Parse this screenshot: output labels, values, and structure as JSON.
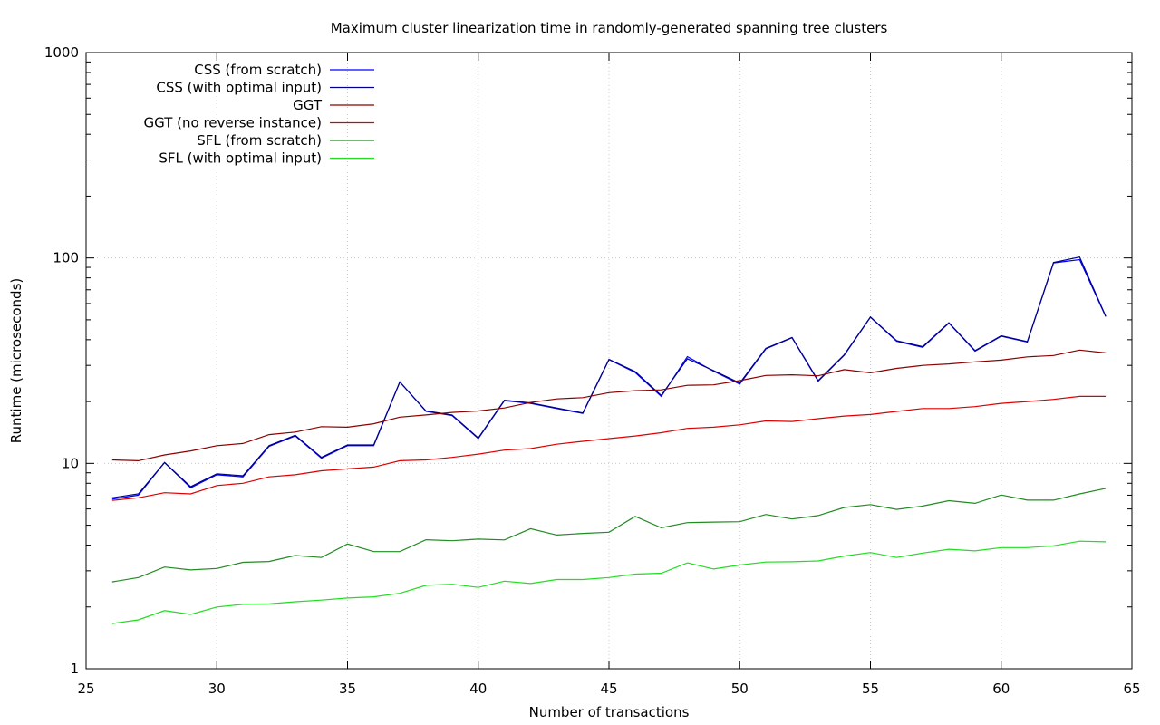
{
  "chart_data": {
    "type": "line",
    "title": "Maximum cluster linearization time in randomly-generated spanning tree clusters",
    "xlabel": "Number of transactions",
    "ylabel": "Runtime (microseconds)",
    "xlim": [
      25,
      65
    ],
    "ylim": [
      1,
      1000
    ],
    "yscale": "log",
    "grid": true,
    "legend_position": "top-left",
    "x_ticks": [
      25,
      30,
      35,
      40,
      45,
      50,
      55,
      60,
      65
    ],
    "x_tick_labels": [
      "25",
      "30",
      "35",
      "40",
      "45",
      "50",
      "55",
      "60",
      "65"
    ],
    "y_ticks": [
      1,
      10,
      100,
      1000
    ],
    "y_tick_labels": [
      "1",
      "10",
      "100",
      "1000"
    ],
    "x": [
      26,
      27,
      28,
      29,
      30,
      31,
      32,
      33,
      34,
      35,
      36,
      37,
      38,
      39,
      40,
      41,
      42,
      43,
      44,
      45,
      46,
      47,
      48,
      49,
      50,
      51,
      52,
      53,
      54,
      55,
      56,
      57,
      58,
      59,
      60,
      61,
      62,
      63,
      64
    ],
    "series": [
      {
        "name": "CSS (from scratch)",
        "color": "#0000ff",
        "values": [
          6.7,
          7.0,
          10.1,
          7.6,
          8.8,
          8.6,
          12.1,
          13.6,
          10.6,
          12.2,
          12.2,
          24.9,
          17.9,
          17.1,
          13.2,
          20.2,
          19.6,
          18.5,
          17.5,
          32.0,
          27.7,
          21.2,
          33.1,
          28.1,
          24.3,
          36.1,
          40.9,
          25.1,
          33.6,
          51.5,
          39.3,
          36.7,
          48.2,
          35.2,
          41.6,
          39.0,
          94.6,
          98.2,
          51.8
        ]
      },
      {
        "name": "CSS (with optimal input)",
        "color": "#00008b",
        "values": [
          6.8,
          7.1,
          10.1,
          7.7,
          8.9,
          8.7,
          12.2,
          13.7,
          10.7,
          12.3,
          12.3,
          24.9,
          18.0,
          17.2,
          13.3,
          20.3,
          19.7,
          18.6,
          17.6,
          32.1,
          28.0,
          21.4,
          32.3,
          28.3,
          24.6,
          36.3,
          41.0,
          25.3,
          33.8,
          51.6,
          39.6,
          37.0,
          48.4,
          35.4,
          41.8,
          39.2,
          95.0,
          101.0,
          52.0
        ]
      },
      {
        "name": "GGT",
        "color": "#8b0000",
        "values": [
          10.4,
          10.3,
          11.0,
          11.5,
          12.2,
          12.5,
          13.8,
          14.2,
          15.1,
          15.0,
          15.6,
          16.8,
          17.2,
          17.7,
          18.0,
          18.6,
          19.8,
          20.6,
          20.9,
          22.1,
          22.6,
          22.8,
          24.0,
          24.1,
          25.3,
          26.8,
          27.0,
          26.7,
          28.6,
          27.6,
          29.0,
          30.0,
          30.5,
          31.2,
          31.8,
          33.0,
          33.5,
          35.6,
          34.5
        ]
      },
      {
        "name": "GGT (no reverse instance)",
        "color": "#dd0000",
        "values": [
          6.6,
          6.8,
          7.2,
          7.1,
          7.8,
          8.0,
          8.6,
          8.8,
          9.2,
          9.4,
          9.6,
          10.3,
          10.4,
          10.7,
          11.1,
          11.6,
          11.8,
          12.4,
          12.8,
          13.2,
          13.6,
          14.1,
          14.8,
          15.0,
          15.4,
          16.1,
          16.0,
          16.5,
          17.0,
          17.3,
          17.9,
          18.5,
          18.5,
          18.9,
          19.6,
          20.0,
          20.5,
          21.2,
          21.2
        ]
      },
      {
        "name": "SFL (from scratch)",
        "color": "#228b22",
        "values": [
          2.65,
          2.78,
          3.13,
          3.03,
          3.08,
          3.3,
          3.33,
          3.56,
          3.48,
          4.05,
          3.72,
          3.72,
          4.25,
          4.2,
          4.28,
          4.24,
          4.81,
          4.48,
          4.56,
          4.62,
          5.52,
          4.86,
          5.15,
          5.18,
          5.2,
          5.64,
          5.36,
          5.57,
          6.1,
          6.3,
          5.97,
          6.2,
          6.58,
          6.39,
          7.02,
          6.62,
          6.62,
          7.1,
          7.56
        ]
      },
      {
        "name": "SFL (with optimal input)",
        "color": "#22dd22",
        "values": [
          1.66,
          1.73,
          1.92,
          1.84,
          2.0,
          2.06,
          2.07,
          2.12,
          2.16,
          2.21,
          2.24,
          2.33,
          2.55,
          2.58,
          2.49,
          2.67,
          2.6,
          2.72,
          2.72,
          2.78,
          2.89,
          2.92,
          3.28,
          3.06,
          3.2,
          3.31,
          3.32,
          3.35,
          3.54,
          3.68,
          3.48,
          3.66,
          3.82,
          3.75,
          3.89,
          3.89,
          3.97,
          4.18,
          4.15
        ]
      }
    ]
  }
}
